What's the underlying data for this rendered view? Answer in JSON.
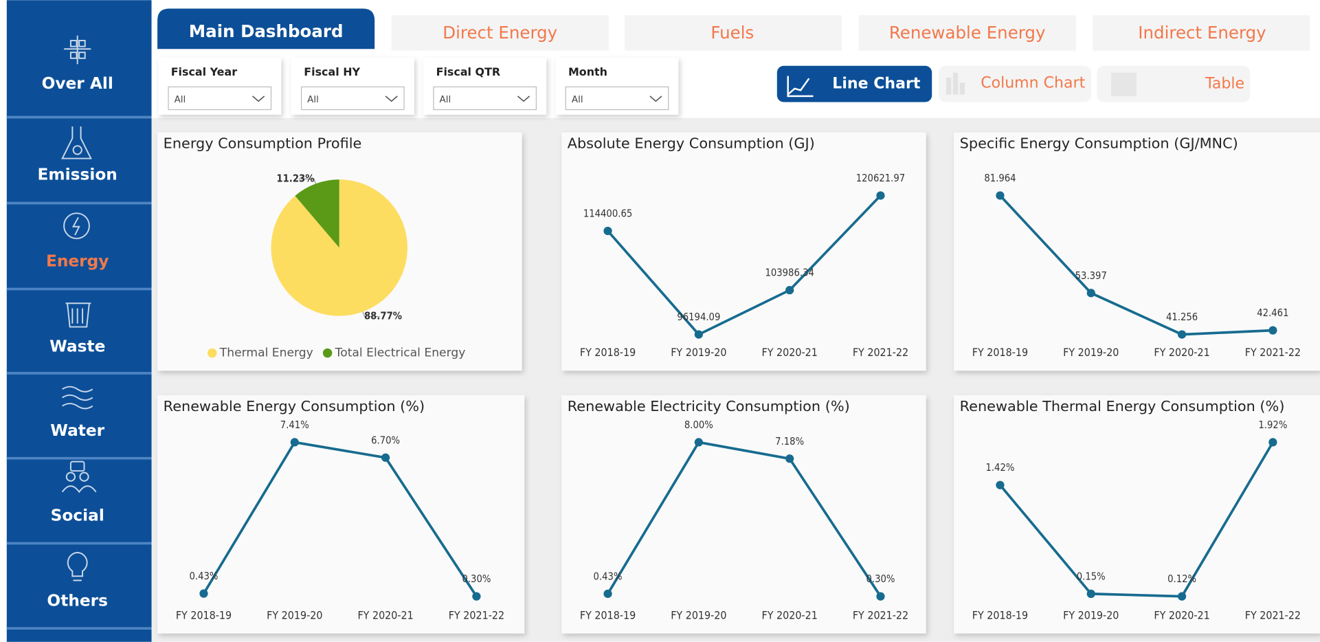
{
  "sidebar": [
    "Over All",
    "Emission",
    "Energy",
    "Waste",
    "Water",
    "Social",
    "Others"
  ],
  "tabs": [
    "Main Dashboard",
    "Direct Energy",
    "Fuels",
    "Renewable Energy",
    "Indirect Energy"
  ],
  "filters": [
    {
      "label": "Fiscal Year",
      "value": "All"
    },
    {
      "label": "Fiscal HY",
      "value": "All"
    },
    {
      "label": "Fiscal QTR",
      "value": "All"
    },
    {
      "label": "Month",
      "value": "All"
    }
  ],
  "view_buttons": [
    "Line Chart",
    "Column Chart",
    "Table"
  ],
  "chart_data": [
    {
      "type": "pie",
      "title": "Energy Consumption Profile",
      "categories": [
        "Thermal Energy",
        "Total Electrical Energy"
      ],
      "values": [
        88.77,
        11.23
      ],
      "value_labels": [
        "88.77%",
        "11.23%"
      ],
      "colors": [
        "#fddd60",
        "#5a9a17"
      ],
      "legend": "bottom"
    },
    {
      "type": "line",
      "title": "Absolute Energy Consumption (GJ)",
      "categories": [
        "FY 2018-19",
        "FY 2019-20",
        "FY 2020-21",
        "FY 2021-22"
      ],
      "values": [
        114400.65,
        96194.09,
        103986.34,
        120621.97
      ],
      "color": "#176b8f"
    },
    {
      "type": "line",
      "title": "Specific Energy Consumption (GJ/MNC)",
      "categories": [
        "FY 2018-19",
        "FY 2019-20",
        "FY 2020-21",
        "FY 2021-22"
      ],
      "values": [
        81.964,
        53.397,
        41.256,
        42.461
      ],
      "color": "#176b8f"
    },
    {
      "type": "line",
      "title": "Renewable Energy Consumption (%)",
      "categories": [
        "FY 2018-19",
        "FY 2019-20",
        "FY 2020-21",
        "FY 2021-22"
      ],
      "values": [
        0.43,
        7.41,
        6.7,
        0.3
      ],
      "value_labels": [
        "0.43%",
        "7.41%",
        "6.70%",
        "0.30%"
      ],
      "color": "#176b8f"
    },
    {
      "type": "line",
      "title": "Renewable Electricity Consumption (%)",
      "categories": [
        "FY 2018-19",
        "FY 2019-20",
        "FY 2020-21",
        "FY 2021-22"
      ],
      "values": [
        0.43,
        8,
        7.18,
        0.3
      ],
      "value_labels": [
        "0.43%",
        "8.00%",
        "7.18%",
        "0.30%"
      ],
      "color": "#176b8f"
    },
    {
      "type": "line",
      "title": "Renewable Thermal Energy Consumption (%)",
      "categories": [
        "FY 2018-19",
        "FY 2019-20",
        "FY 2020-21",
        "FY 2021-22"
      ],
      "values": [
        1.42,
        0.15,
        0.12,
        1.92
      ],
      "value_labels": [
        "1.42%",
        "0.15%",
        "0.12%",
        "1.92%"
      ],
      "color": "#176b8f"
    }
  ]
}
